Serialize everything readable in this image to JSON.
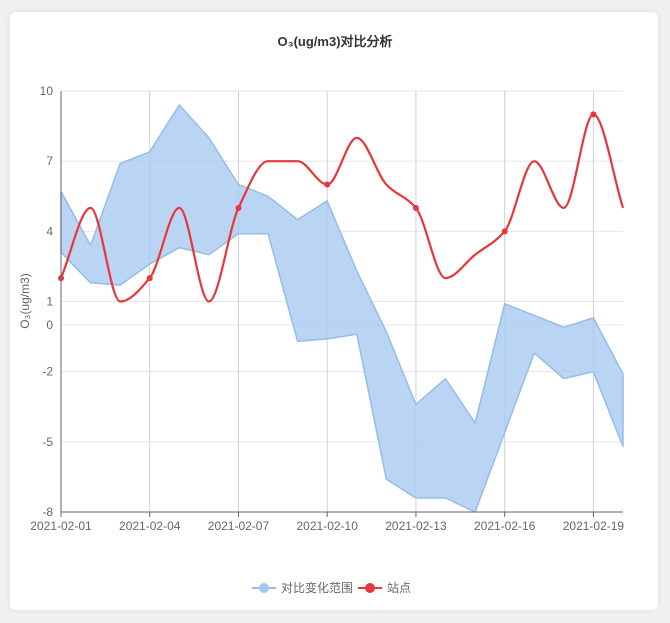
{
  "chart_data": {
    "type": "line",
    "title": "O₃(ug/m3)对比分析",
    "ylabel": "O₃(ug/m3)",
    "xlabel": "",
    "y_ticks": [
      10,
      7,
      4,
      1,
      0,
      -2,
      -5,
      -8
    ],
    "ylim": [
      -8,
      10
    ],
    "x_tick_labels": [
      "2021-02-01",
      "2021-02-04",
      "2021-02-07",
      "2021-02-10",
      "2021-02-13",
      "2021-02-16",
      "2021-02-19"
    ],
    "x": [
      "2021-02-01",
      "2021-02-02",
      "2021-02-03",
      "2021-02-04",
      "2021-02-05",
      "2021-02-06",
      "2021-02-07",
      "2021-02-08",
      "2021-02-09",
      "2021-02-10",
      "2021-02-11",
      "2021-02-12",
      "2021-02-13",
      "2021-02-14",
      "2021-02-15",
      "2021-02-16",
      "2021-02-17",
      "2021-02-18",
      "2021-02-19",
      "2021-02-20"
    ],
    "series": [
      {
        "name": "对比变化范围",
        "type": "range",
        "color": "#a6c8f0",
        "upper": [
          5.7,
          3.4,
          6.9,
          7.4,
          9.4,
          8.0,
          6.0,
          5.5,
          4.5,
          5.3,
          2.3,
          -0.3,
          -3.4,
          -2.3,
          -4.2,
          0.9,
          0.4,
          -0.1,
          0.3,
          -2.1
        ],
        "lower": [
          3.1,
          1.8,
          1.7,
          2.6,
          3.3,
          3.0,
          3.9,
          3.9,
          -0.7,
          -0.6,
          -0.4,
          -6.6,
          -7.4,
          -7.4,
          -8.0,
          -4.6,
          -1.2,
          -2.3,
          -2.0,
          -5.2
        ]
      },
      {
        "name": "站点",
        "type": "line",
        "color": "#e8363a",
        "values": [
          2.0,
          5.0,
          1.0,
          2.0,
          5.0,
          1.0,
          5.0,
          7.0,
          7.0,
          6.0,
          8.0,
          6.0,
          5.0,
          2.0,
          3.0,
          4.0,
          7.0,
          5.0,
          9.0,
          5.0
        ],
        "markers_at": [
          0,
          3,
          6,
          9,
          12,
          15,
          18
        ]
      }
    ],
    "legend": {
      "position": "bottom-center",
      "items": [
        "对比变化范围",
        "站点"
      ]
    },
    "grid": true
  }
}
